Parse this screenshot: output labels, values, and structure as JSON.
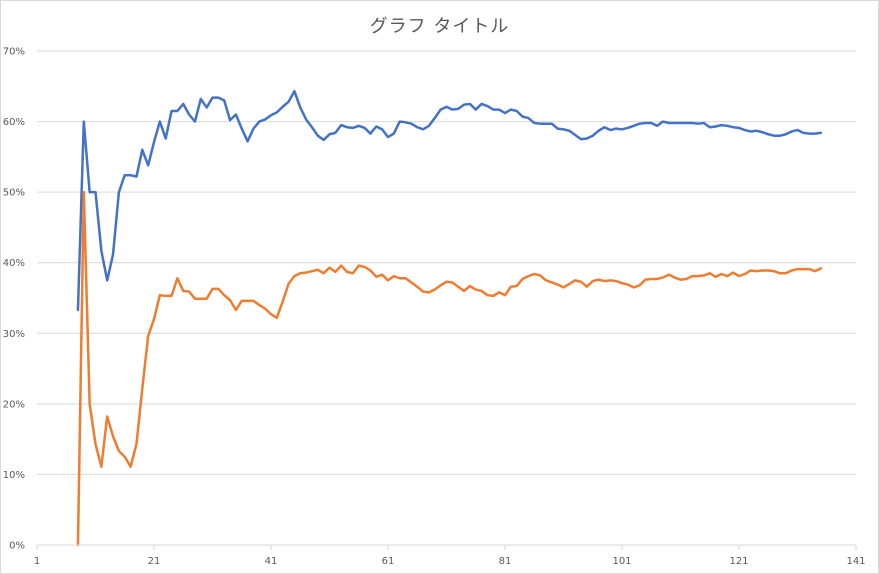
{
  "chart_data": {
    "type": "line",
    "title": "グラフ タイトル",
    "xlabel": "",
    "ylabel": "",
    "xlim": [
      1,
      141
    ],
    "ylim": [
      0,
      0.7
    ],
    "x_ticks": [
      "1",
      "21",
      "41",
      "61",
      "81",
      "101",
      "121",
      "141"
    ],
    "y_ticks": [
      "0%",
      "10%",
      "20%",
      "30%",
      "40%",
      "50%",
      "60%",
      "70%"
    ],
    "grid": "horizontal",
    "legend": "none",
    "x_start": 8,
    "series": [
      {
        "color": "#4472c4",
        "values": [
          0.333,
          0.6,
          0.5,
          0.5,
          0.417,
          0.375,
          0.412,
          0.5,
          0.524,
          0.524,
          0.522,
          0.56,
          0.538,
          0.571,
          0.6,
          0.576,
          0.615,
          0.615,
          0.625,
          0.61,
          0.6,
          0.632,
          0.62,
          0.634,
          0.634,
          0.63,
          0.602,
          0.61,
          0.59,
          0.572,
          0.59,
          0.6,
          0.603,
          0.609,
          0.613,
          0.621,
          0.628,
          0.643,
          0.62,
          0.603,
          0.592,
          0.58,
          0.574,
          0.582,
          0.584,
          0.595,
          0.592,
          0.591,
          0.594,
          0.591,
          0.583,
          0.593,
          0.589,
          0.578,
          0.583,
          0.6,
          0.599,
          0.597,
          0.592,
          0.589,
          0.594,
          0.605,
          0.617,
          0.621,
          0.617,
          0.618,
          0.624,
          0.625,
          0.617,
          0.625,
          0.622,
          0.617,
          0.617,
          0.612,
          0.617,
          0.615,
          0.607,
          0.605,
          0.598,
          0.597,
          0.597,
          0.597,
          0.59,
          0.589,
          0.587,
          0.581,
          0.575,
          0.576,
          0.58,
          0.587,
          0.592,
          0.588,
          0.59,
          0.589,
          0.591,
          0.594,
          0.597,
          0.598,
          0.598,
          0.594,
          0.6,
          0.598,
          0.598,
          0.598,
          0.598,
          0.598,
          0.597,
          0.598,
          0.592,
          0.593,
          0.595,
          0.594,
          0.592,
          0.591,
          0.588,
          0.586,
          0.587,
          0.585,
          0.582,
          0.58,
          0.58,
          0.582,
          0.586,
          0.588,
          0.584,
          0.583,
          0.583,
          0.584
        ]
      },
      {
        "color": "#ed7d31",
        "values": [
          0,
          0.5,
          0.2,
          0.143,
          0.111,
          0.182,
          0.154,
          0.133,
          0.125,
          0.111,
          0.143,
          0.222,
          0.296,
          0.32,
          0.354,
          0.353,
          0.353,
          0.378,
          0.36,
          0.359,
          0.349,
          0.349,
          0.349,
          0.363,
          0.363,
          0.354,
          0.347,
          0.333,
          0.346,
          0.346,
          0.346,
          0.34,
          0.335,
          0.327,
          0.322,
          0.345,
          0.37,
          0.381,
          0.385,
          0.386,
          0.388,
          0.39,
          0.385,
          0.393,
          0.387,
          0.396,
          0.387,
          0.385,
          0.396,
          0.394,
          0.389,
          0.38,
          0.383,
          0.375,
          0.381,
          0.378,
          0.378,
          0.372,
          0.366,
          0.359,
          0.358,
          0.362,
          0.368,
          0.373,
          0.372,
          0.366,
          0.36,
          0.367,
          0.362,
          0.36,
          0.354,
          0.353,
          0.358,
          0.354,
          0.366,
          0.367,
          0.377,
          0.381,
          0.384,
          0.382,
          0.375,
          0.372,
          0.369,
          0.365,
          0.37,
          0.375,
          0.373,
          0.366,
          0.374,
          0.376,
          0.374,
          0.375,
          0.374,
          0.371,
          0.369,
          0.365,
          0.368,
          0.376,
          0.377,
          0.377,
          0.379,
          0.383,
          0.379,
          0.376,
          0.377,
          0.381,
          0.381,
          0.382,
          0.385,
          0.38,
          0.384,
          0.381,
          0.386,
          0.381,
          0.384,
          0.389,
          0.388,
          0.389,
          0.389,
          0.388,
          0.385,
          0.385,
          0.389,
          0.391,
          0.391,
          0.391,
          0.388,
          0.392
        ]
      }
    ]
  }
}
